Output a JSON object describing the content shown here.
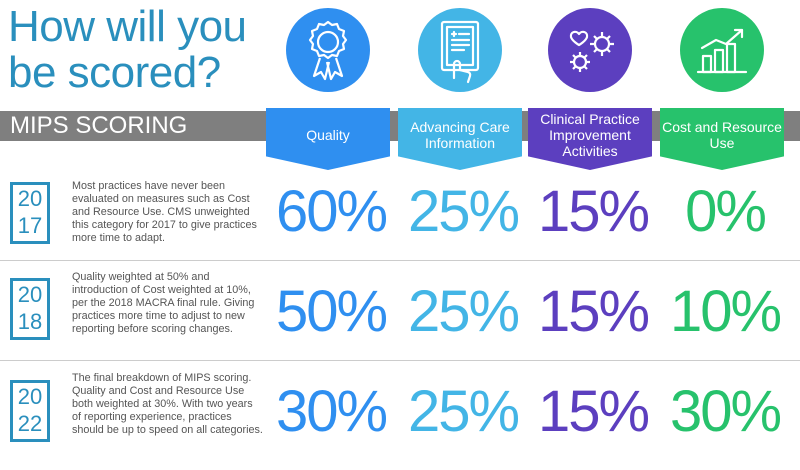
{
  "title": {
    "line1": "How will you",
    "line2": "be scored?"
  },
  "section_label": "MIPS SCORING",
  "colors": {
    "quality": "#2f8ff0",
    "aci": "#43b5e6",
    "cpia": "#5c3fbf",
    "cost": "#27c26c",
    "year": "#2a8fbd"
  },
  "categories": [
    {
      "label": "Quality",
      "icon": "ribbon-award-icon"
    },
    {
      "label": "Advancing Care Information",
      "icon": "digital-document-icon"
    },
    {
      "label": "Clinical Practice Improvement Activities",
      "icon": "heart-gears-icon"
    },
    {
      "label": "Cost and Resource Use",
      "icon": "bar-chart-growth-icon"
    }
  ],
  "rows": [
    {
      "year_top": "20",
      "year_bottom": "17",
      "description": "Most practices have never been evaluated on measures such as Cost and Resource Use. CMS unweighted this category for 2017 to give practices more time to adapt.",
      "values": [
        "60%",
        "25%",
        "15%",
        "0%"
      ]
    },
    {
      "year_top": "20",
      "year_bottom": "18",
      "description": "Quality weighted at 50% and introduction of Cost weighted at 10%, per the 2018 MACRA final rule. Giving practices more time to adjust to new reporting before scoring changes.",
      "values": [
        "50%",
        "25%",
        "15%",
        "10%"
      ]
    },
    {
      "year_top": "20",
      "year_bottom": "22",
      "description": "The final breakdown of MIPS scoring. Quality and Cost and Resource Use both weighted at 30%. With two years of reporting experience, practices should be up to speed on all categories.",
      "values": [
        "30%",
        "25%",
        "15%",
        "30%"
      ]
    }
  ]
}
